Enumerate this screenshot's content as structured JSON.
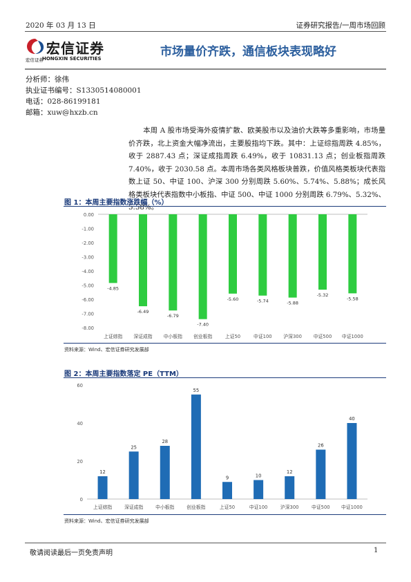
{
  "header": {
    "date": "2020 年 03 月 13 日",
    "report_type": "证券研究报告/一周市场回顾"
  },
  "logo": {
    "name_cn": "宏信证券",
    "name_cn_small": "宏信证券",
    "name_en": "HONGXIN SECURITIES"
  },
  "title": "市场量价齐跌，通信板块表现略好",
  "analyst": {
    "name_line": "分析师：徐伟",
    "license_line": "执业证书编号：S1330514080001",
    "phone_line": "电话：028-86199181",
    "email_line": "邮箱：xuw@hxzb.cn"
  },
  "paragraph": "本周 A 股市场受海外疫情扩散、欧美股市以及油价大跌等多重影响，市场量价齐跌，北上资金大幅净流出，主要股指均下跌。其中：上证综指周跌 4.85%，收于 2887.43 点；深证成指周跌 6.49%，收于 10831.13 点；创业板指周跌 7.40%，收于 2030.58 点。本周市场各类风格板块普跌，价值风格类板块代表指数上证 50、中证 100、沪深 300 分别周跌 5.60%、5.74%、5.88%；成长风格类板块代表指数中小板指、中证 500、中证 1000 分别周跌 6.79%、5.32%、5.58%。",
  "figure1": {
    "caption": "图 1：本周主要指数涨跌幅（%）",
    "source": "资料来源：Wind、宏信证券研究发展部"
  },
  "figure2": {
    "caption": "图 2：本周主要指数落定 PE（TTM）",
    "source": "资料来源：Wind、宏信证券研究发展部"
  },
  "chart_data": [
    {
      "type": "bar",
      "categories": [
        "上证综指",
        "深证成指",
        "中小板指",
        "创业板指",
        "上证50",
        "中证100",
        "沪深300",
        "中证500",
        "中证1000"
      ],
      "values": [
        -4.85,
        -6.49,
        -6.79,
        -7.4,
        -5.6,
        -5.74,
        -5.88,
        -5.32,
        -5.58
      ],
      "value_labels": [
        "-4.85",
        "-6.49",
        "-6.79",
        "-7.40",
        "-5.60",
        "-5.74",
        "-5.88",
        "-5.32",
        "-5.58"
      ],
      "y_ticks": [
        "0.00",
        "-1.00",
        "-2.00",
        "-3.00",
        "-4.00",
        "-5.00",
        "-6.00",
        "-7.00",
        "-8.00"
      ],
      "ylim": [
        -8,
        0
      ],
      "color": "#2ecc40",
      "grid": false
    },
    {
      "type": "bar",
      "categories": [
        "上证综指",
        "深证成指",
        "中小板指",
        "创业板指",
        "上证50",
        "中证100",
        "沪深300",
        "中证500",
        "中证1000"
      ],
      "values": [
        12,
        25,
        28,
        55,
        9,
        10,
        12,
        26,
        40
      ],
      "value_labels": [
        "12",
        "25",
        "28",
        "55",
        "9",
        "10",
        "12",
        "26",
        "40"
      ],
      "y_ticks": [
        "0",
        "20",
        "40",
        "60"
      ],
      "ylim": [
        0,
        60
      ],
      "color": "#1f6cb5",
      "grid": false
    }
  ],
  "footer": {
    "disclaimer": "敬请阅读最后一页免责声明",
    "page_number": "1"
  }
}
